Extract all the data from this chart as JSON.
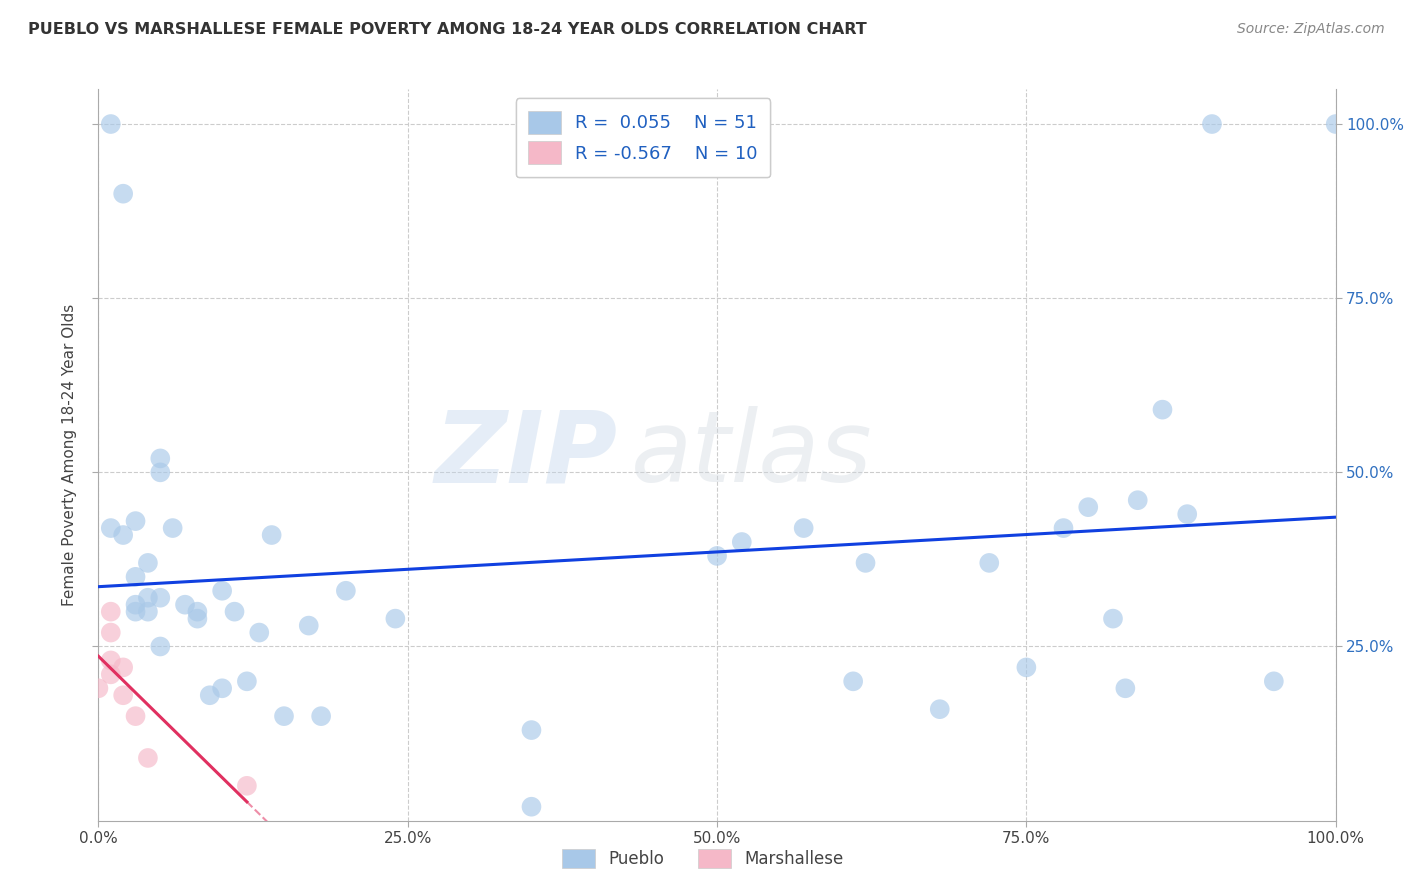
{
  "title": "PUEBLO VS MARSHALLESE FEMALE POVERTY AMONG 18-24 YEAR OLDS CORRELATION CHART",
  "source": "Source: ZipAtlas.com",
  "ylabel": "Female Poverty Among 18-24 Year Olds",
  "xlim": [
    0.0,
    1.0
  ],
  "ylim": [
    0.0,
    1.05
  ],
  "pueblo_R": 0.055,
  "pueblo_N": 51,
  "marshallese_R": -0.567,
  "marshallese_N": 10,
  "pueblo_color": "#a8c8e8",
  "marshallese_color": "#f5b8c8",
  "trend_pueblo_color": "#1040e0",
  "trend_marshallese_color": "#e03060",
  "background_color": "#ffffff",
  "grid_color": "#cccccc",
  "pueblo_x": [
    0.01,
    0.01,
    0.02,
    0.02,
    0.03,
    0.03,
    0.03,
    0.03,
    0.04,
    0.04,
    0.04,
    0.05,
    0.05,
    0.05,
    0.05,
    0.06,
    0.07,
    0.08,
    0.08,
    0.09,
    0.1,
    0.1,
    0.11,
    0.12,
    0.13,
    0.14,
    0.15,
    0.17,
    0.18,
    0.2,
    0.24,
    0.35,
    0.35,
    0.5,
    0.52,
    0.57,
    0.61,
    0.62,
    0.68,
    0.72,
    0.75,
    0.78,
    0.8,
    0.82,
    0.83,
    0.84,
    0.86,
    0.88,
    0.9,
    0.95,
    1.0
  ],
  "pueblo_y": [
    1.0,
    0.42,
    0.9,
    0.41,
    0.43,
    0.35,
    0.31,
    0.3,
    0.37,
    0.32,
    0.3,
    0.52,
    0.5,
    0.32,
    0.25,
    0.42,
    0.31,
    0.3,
    0.29,
    0.18,
    0.33,
    0.19,
    0.3,
    0.2,
    0.27,
    0.41,
    0.15,
    0.28,
    0.15,
    0.33,
    0.29,
    0.13,
    0.02,
    0.38,
    0.4,
    0.42,
    0.2,
    0.37,
    0.16,
    0.37,
    0.22,
    0.42,
    0.45,
    0.29,
    0.19,
    0.46,
    0.59,
    0.44,
    1.0,
    0.2,
    1.0
  ],
  "marshallese_x": [
    0.0,
    0.01,
    0.01,
    0.01,
    0.01,
    0.02,
    0.02,
    0.03,
    0.04,
    0.12
  ],
  "marshallese_y": [
    0.19,
    0.3,
    0.27,
    0.23,
    0.21,
    0.22,
    0.18,
    0.15,
    0.09,
    0.05
  ],
  "xtick_labels": [
    "0.0%",
    "25.0%",
    "50.0%",
    "75.0%",
    "100.0%"
  ],
  "xtick_vals": [
    0.0,
    0.25,
    0.5,
    0.75,
    1.0
  ],
  "ytick_vals": [
    0.25,
    0.5,
    0.75,
    1.0
  ],
  "ytick_right_labels": [
    "25.0%",
    "50.0%",
    "75.0%",
    "100.0%"
  ],
  "watermark_zip": "ZIP",
  "watermark_atlas": "atlas",
  "legend_pueblo_label": "Pueblo",
  "legend_marshallese_label": "Marshallese"
}
